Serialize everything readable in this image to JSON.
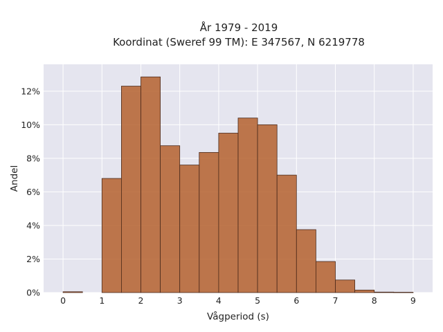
{
  "chart_data": {
    "type": "bar",
    "title_lines": [
      "År 1979 - 2019",
      "Koordinat (Sweref 99 TM): E 347567, N 6219778"
    ],
    "xlabel": "Vågperiod (s)",
    "ylabel": "Andel",
    "x_ticks": [
      0,
      1,
      2,
      3,
      4,
      5,
      6,
      7,
      8,
      9
    ],
    "x_tick_labels": [
      "0",
      "1",
      "2",
      "3",
      "4",
      "5",
      "6",
      "7",
      "8",
      "9"
    ],
    "y_ticks": [
      0,
      2,
      4,
      6,
      8,
      10,
      12
    ],
    "y_tick_labels": [
      "0%",
      "2%",
      "4%",
      "6%",
      "8%",
      "10%",
      "12%"
    ],
    "xlim": [
      -0.5,
      9.5
    ],
    "ylim": [
      0,
      13.6
    ],
    "bin_width": 0.5,
    "bins": [
      {
        "x0": 0.0,
        "x1": 0.5,
        "value": 0.05
      },
      {
        "x0": 1.0,
        "x1": 1.5,
        "value": 6.8
      },
      {
        "x0": 1.5,
        "x1": 2.0,
        "value": 12.3
      },
      {
        "x0": 2.0,
        "x1": 2.5,
        "value": 12.85
      },
      {
        "x0": 2.5,
        "x1": 3.0,
        "value": 8.75
      },
      {
        "x0": 3.0,
        "x1": 3.5,
        "value": 7.6
      },
      {
        "x0": 3.5,
        "x1": 4.0,
        "value": 8.35
      },
      {
        "x0": 4.0,
        "x1": 4.5,
        "value": 9.5
      },
      {
        "x0": 4.5,
        "x1": 5.0,
        "value": 10.4
      },
      {
        "x0": 5.0,
        "x1": 5.5,
        "value": 10.0
      },
      {
        "x0": 5.5,
        "x1": 6.0,
        "value": 7.0
      },
      {
        "x0": 6.0,
        "x1": 6.5,
        "value": 3.75
      },
      {
        "x0": 6.5,
        "x1": 7.0,
        "value": 1.85
      },
      {
        "x0": 7.0,
        "x1": 7.5,
        "value": 0.75
      },
      {
        "x0": 7.5,
        "x1": 8.0,
        "value": 0.15
      },
      {
        "x0": 8.0,
        "x1": 8.5,
        "value": 0.03
      },
      {
        "x0": 8.5,
        "x1": 9.0,
        "value": 0.02
      }
    ],
    "grid": true,
    "colors": {
      "bar_fill": "#b5612e",
      "bar_opacity": 0.85,
      "bar_edge": "#4a2a1c",
      "plot_background": "#e5e5ef",
      "grid": "#ffffff"
    }
  }
}
